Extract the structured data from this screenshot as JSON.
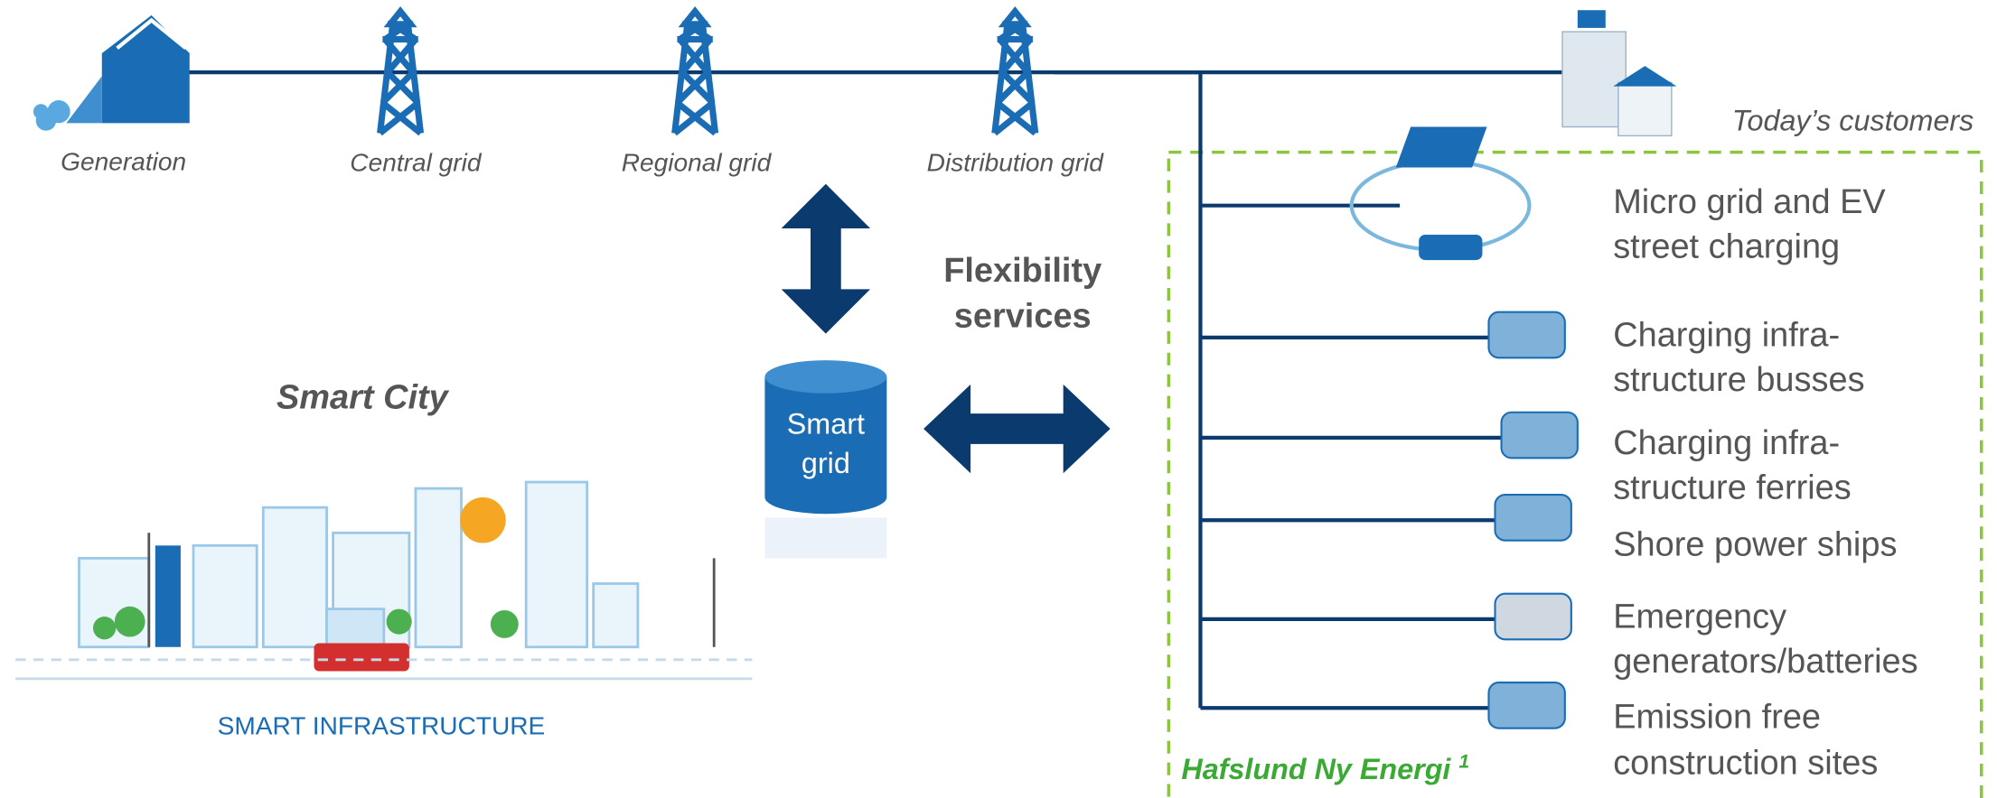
{
  "chain": [
    {
      "label": "Generation"
    },
    {
      "label": "Central grid"
    },
    {
      "label": "Regional grid"
    },
    {
      "label": "Distribution grid"
    }
  ],
  "customers_label": "Today’s customers",
  "flexibility": [
    "Flexibility",
    "services"
  ],
  "smart_grid": [
    "Smart",
    "grid"
  ],
  "smart_city": {
    "title": "Smart City",
    "caption": "SMART INFRASTRUCTURE"
  },
  "hafslund": {
    "label": "Hafslund Ny Energi",
    "note": "1"
  },
  "segments": [
    {
      "lines": [
        "Micro grid and EV",
        "street charging"
      ]
    },
    {
      "lines": [
        "Charging infra-",
        "structure busses"
      ]
    },
    {
      "lines": [
        "Charging infra-",
        "structure ferries"
      ]
    },
    {
      "lines": [
        "Shore power ships"
      ]
    },
    {
      "lines": [
        "Emergency",
        "generators/batteries"
      ]
    },
    {
      "lines": [
        "Emission free",
        "construction sites"
      ]
    }
  ]
}
